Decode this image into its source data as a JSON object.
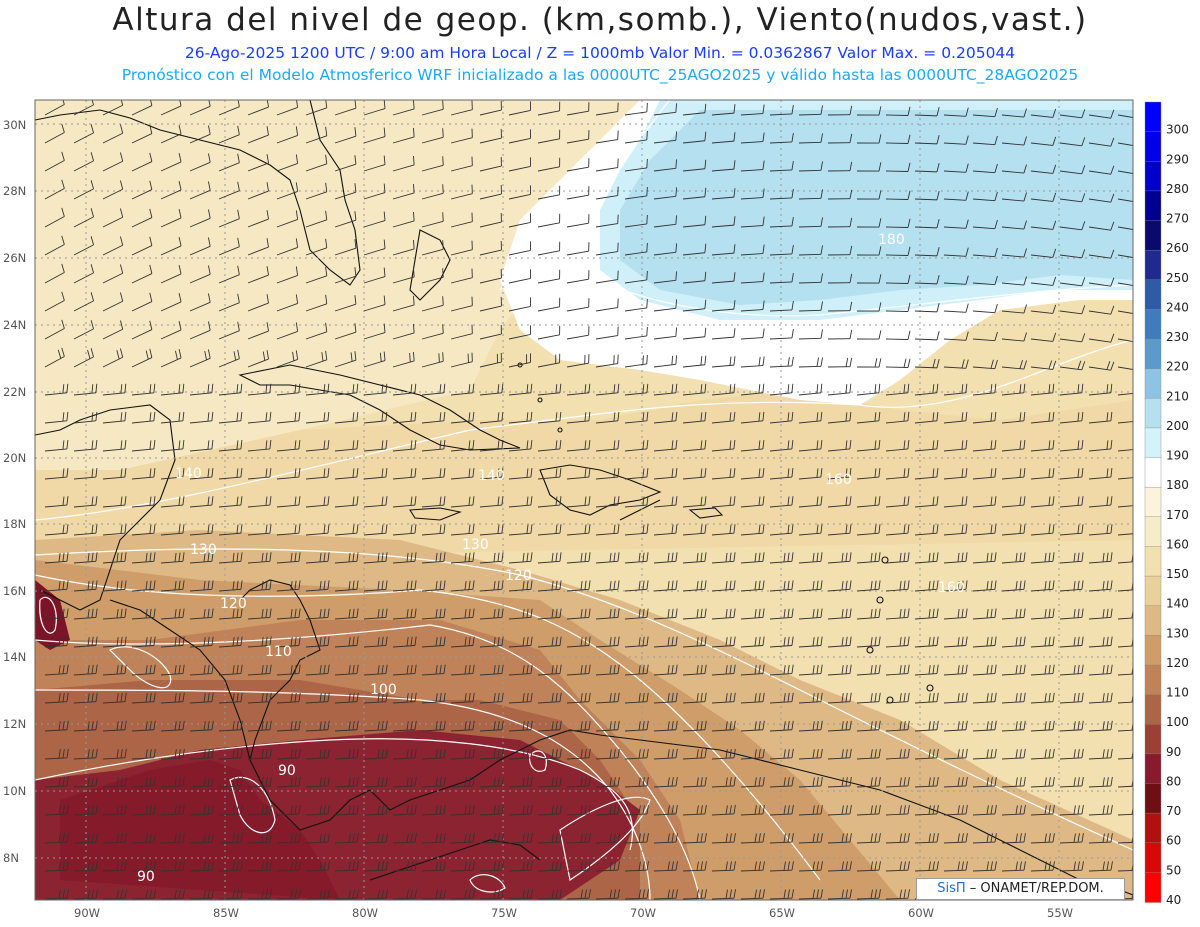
{
  "header": {
    "title": "Altura del nivel de geop. (km,somb.), Viento(nudos,vast.)",
    "line1": "26-Ago-2025  1200 UTC / 9:00 am Hora Local / Z = 1000mb  Valor Min. = 0.0362867  Valor Max. = 0.205044",
    "line2": "Pronóstico con el Modelo Atmosferico WRF inicializado a las 0000UTC_25AGO2025 y válido hasta las  0000UTC_28AGO2025"
  },
  "axes": {
    "lat_labels": [
      "30N",
      "28N",
      "26N",
      "24N",
      "22N",
      "20N",
      "18N",
      "16N",
      "14N",
      "12N",
      "10N",
      "8N"
    ],
    "lon_labels": [
      "90W",
      "85W",
      "80W",
      "75W",
      "70W",
      "65W",
      "60W",
      "55W"
    ]
  },
  "colorbar": {
    "levels": [
      "300",
      "290",
      "280",
      "270",
      "260",
      "250",
      "240",
      "230",
      "220",
      "210",
      "200",
      "190",
      "180",
      "170",
      "160",
      "150",
      "140",
      "130",
      "120",
      "110",
      "100",
      "90",
      "80",
      "70",
      "60",
      "50",
      "40"
    ],
    "colors": [
      "#0000ff",
      "#0000e6",
      "#0000c8",
      "#000090",
      "#0a0a6e",
      "#1e2a90",
      "#2f5aa8",
      "#3f7cbd",
      "#5a9acc",
      "#8fc3e3",
      "#b4e0f0",
      "#d4f2fa",
      "#ffffff",
      "#fbf3dc",
      "#f7ecc8",
      "#f2e0b0",
      "#ead09a",
      "#deb985",
      "#cf9d6a",
      "#c08359",
      "#ad6548",
      "#9c3f35",
      "#871a2b",
      "#6e0f14",
      "#b01010",
      "#d80808",
      "#ff0000"
    ]
  },
  "contour_labels": [
    "140",
    "140",
    "160",
    "130",
    "130",
    "120",
    "120",
    "110",
    "100",
    "90",
    "90",
    "180",
    "160"
  ],
  "credit": {
    "brand": "SisΠ",
    "text": "– ONAMET/REP.DOM."
  }
}
